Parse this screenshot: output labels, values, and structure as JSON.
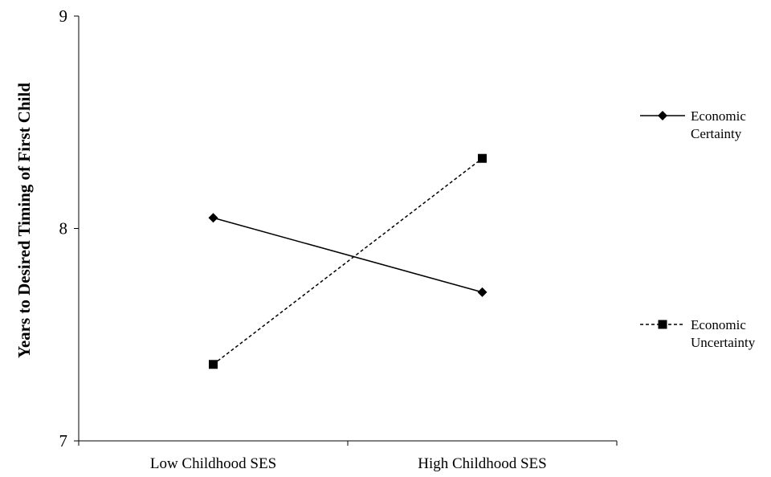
{
  "chart_data": {
    "type": "line",
    "title": "",
    "xlabel": "",
    "ylabel": "Years to Desired Timing of First Child",
    "categories": [
      "Low Childhood SES",
      "High Childhood SES"
    ],
    "ylim": [
      7,
      9
    ],
    "yticks": [
      7,
      8,
      9
    ],
    "grid": false,
    "legend_position": "right",
    "series": [
      {
        "name_lines": [
          "Economic",
          "Certainty"
        ],
        "values": [
          8.05,
          7.7
        ],
        "marker": "diamond",
        "line": "solid",
        "color": "#000000"
      },
      {
        "name_lines": [
          "Economic",
          "Uncertainty"
        ],
        "values": [
          7.36,
          8.33
        ],
        "marker": "square",
        "line": "dashed",
        "color": "#000000"
      }
    ]
  }
}
